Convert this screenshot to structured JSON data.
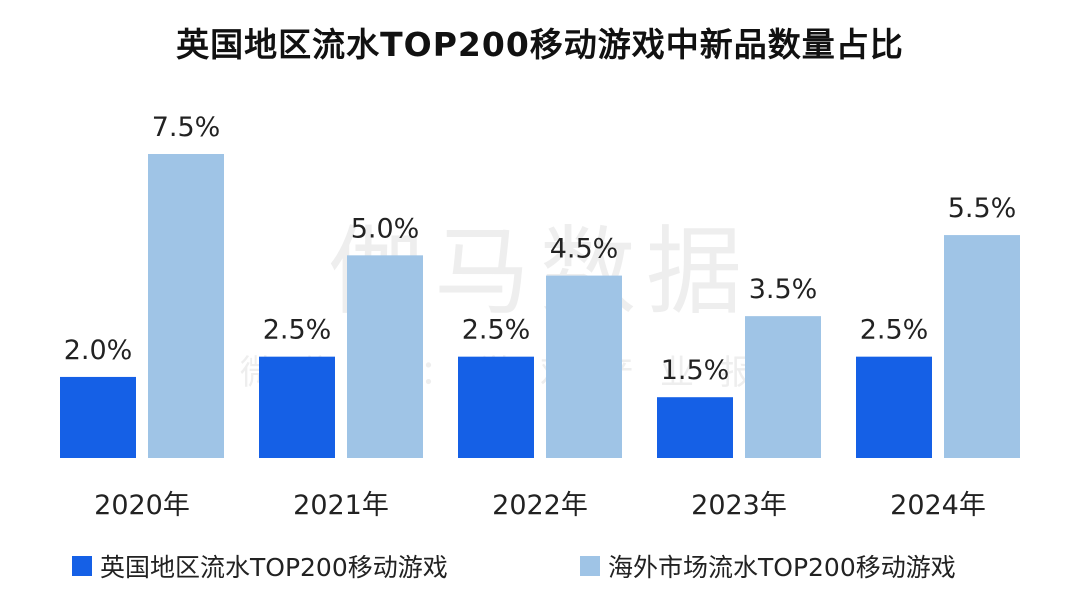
{
  "chart_data": {
    "type": "bar",
    "title": "英国地区流水TOP200移动游戏中新品数量占比",
    "categories": [
      "2020年",
      "2021年",
      "2022年",
      "2023年",
      "2024年"
    ],
    "series": [
      {
        "name": "英国地区流水TOP200移动游戏",
        "color": "#1560e6",
        "values": [
          2.0,
          2.5,
          2.5,
          1.5,
          2.5
        ],
        "labels": [
          "2.0%",
          "2.5%",
          "2.5%",
          "1.5%",
          "2.5%"
        ]
      },
      {
        "name": "海外市场流水TOP200移动游戏",
        "color": "#9fc4e6",
        "values": [
          7.5,
          5.0,
          4.5,
          3.5,
          5.5
        ],
        "labels": [
          "7.5%",
          "5.0%",
          "4.5%",
          "3.5%",
          "5.5%"
        ]
      }
    ],
    "xlabel": "",
    "ylabel": "",
    "ylim": [
      0,
      7.5
    ],
    "grid": false,
    "legend": "bottom"
  },
  "watermark": {
    "main": "伽马数据",
    "sub": "微信号：游戏产业报告"
  }
}
